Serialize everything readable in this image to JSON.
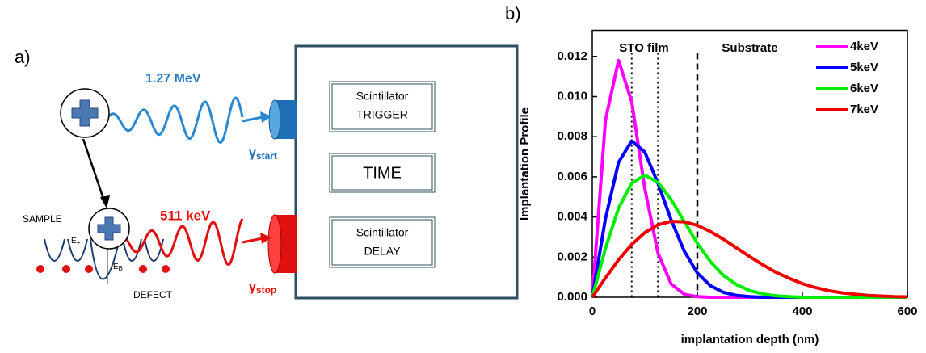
{
  "diagram": {
    "panel_label": "a)",
    "trigger_energy": "1.27 MeV",
    "stop_energy": "511 keV",
    "trigger_box": [
      "Scintillator",
      "TRIGGER"
    ],
    "time_box": "TIME",
    "delay_box": [
      "Scintillator",
      "DELAY"
    ],
    "gamma_start": {
      "symbol": "γ",
      "subscript": "start"
    },
    "gamma_stop": {
      "symbol": "γ",
      "subscript": "stop"
    },
    "sample": "SAMPLE",
    "defect": "DEFECT",
    "e_plus": {
      "symbol": "E",
      "subscript": "+"
    },
    "e_b": {
      "symbol": "E",
      "subscript": "B"
    }
  },
  "chart_data": {
    "type": "line",
    "panel_label": "b)",
    "xlabel": "implantation depth (nm)",
    "ylabel": "Implantation Profile",
    "x": [
      0,
      25,
      50,
      75,
      100,
      125,
      150,
      175,
      200,
      225,
      250,
      275,
      300,
      325,
      350,
      375,
      400,
      425,
      450,
      475,
      500,
      525,
      550,
      575,
      600
    ],
    "series": [
      {
        "name": "4keV",
        "color": "#ff00ff",
        "values": [
          0,
          0.00883,
          0.0118,
          0.00974,
          0.00541,
          0.0022,
          0.00067,
          0.00015,
          3e-05,
          0,
          0,
          0,
          0,
          0,
          0,
          0,
          0,
          0,
          0,
          0,
          0,
          0,
          0,
          0,
          0
        ]
      },
      {
        "name": "5keV",
        "color": "#0000ff",
        "values": [
          0,
          0.00392,
          0.00672,
          0.00779,
          0.00723,
          0.00568,
          0.00386,
          0.0023,
          0.00121,
          0.00057,
          0.00024,
          9e-05,
          3e-05,
          0,
          0,
          0,
          0,
          0,
          0,
          0,
          0,
          0,
          0,
          0,
          0
        ]
      },
      {
        "name": "6keV",
        "color": "#00ee00",
        "values": [
          0,
          0.00244,
          0.00444,
          0.00569,
          0.00608,
          0.00573,
          0.00487,
          0.00377,
          0.00269,
          0.00177,
          0.00108,
          0.00062,
          0.00033,
          0.00016,
          7e-05,
          3e-05,
          0,
          0,
          0,
          0,
          0,
          0,
          0,
          0,
          0
        ]
      },
      {
        "name": "7keV",
        "color": "#ee0000",
        "values": [
          0,
          0.000967,
          0.001865,
          0.00263,
          0.00322,
          0.00361,
          0.00378,
          0.00376,
          0.00358,
          0.00327,
          0.00288,
          0.00245,
          0.00202,
          0.00161,
          0.00124,
          0.00094,
          0.00068,
          0.00048,
          0.00033,
          0.00022,
          0.00015,
          9e-05,
          6e-05,
          3e-05,
          2e-05
        ]
      }
    ],
    "xlim": [
      0,
      600
    ],
    "xticks": [
      0,
      200,
      400,
      600
    ],
    "ylim": [
      0,
      0.0133
    ],
    "yticks": [
      {
        "value": 0,
        "label": "0.000"
      },
      {
        "value": 0.002,
        "label": "0.002"
      },
      {
        "value": 0.004,
        "label": "0.004"
      },
      {
        "value": 0.006,
        "label": "0.006"
      },
      {
        "value": 0.008,
        "label": "0.008"
      },
      {
        "value": 0.01,
        "label": "0.010"
      },
      {
        "value": 0.012,
        "label": "0.012"
      }
    ],
    "vlines": [
      {
        "x": 75,
        "style": "dotted"
      },
      {
        "x": 125,
        "style": "dotted"
      },
      {
        "x": 200,
        "style": "dashed"
      }
    ],
    "annotations": [
      "STO film",
      "Substrate"
    ],
    "grid": false,
    "legend": "upper right"
  }
}
